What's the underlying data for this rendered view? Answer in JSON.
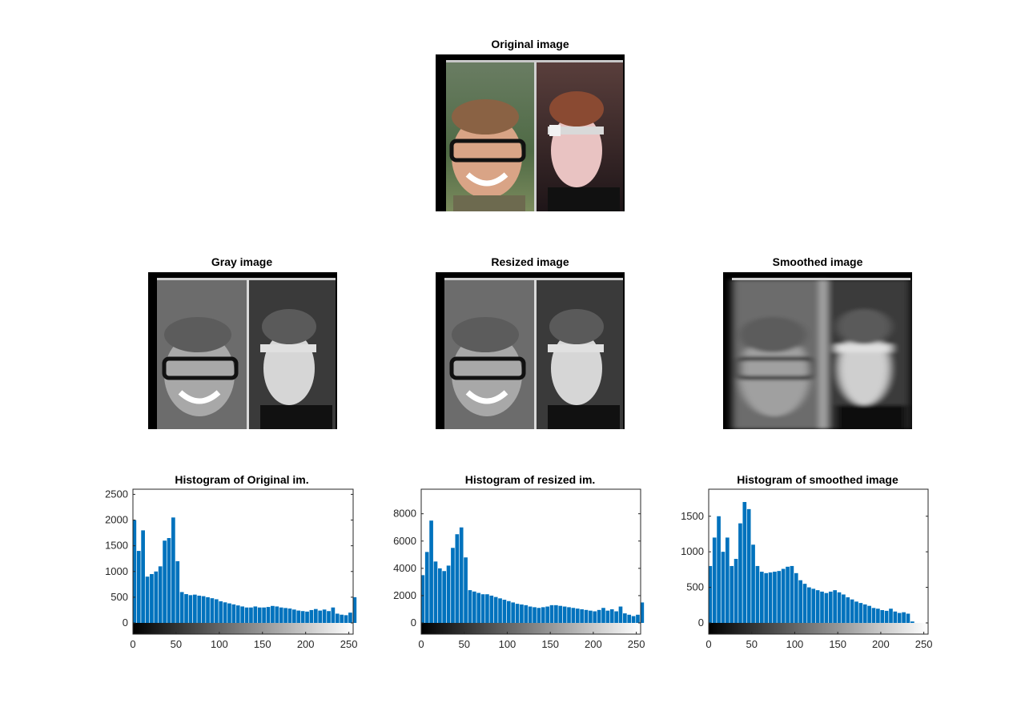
{
  "figure": {
    "panels": {
      "original": {
        "title": "Original image"
      },
      "gray": {
        "title": "Gray image"
      },
      "resized": {
        "title": "Resized image"
      },
      "smoothed": {
        "title": "Smoothed image"
      }
    },
    "colors": {
      "bar": "#0072BD",
      "axis": "#262626",
      "frame_dark": "#000000"
    }
  },
  "chart_data": [
    {
      "type": "bar",
      "title": "Histogram of Original im.",
      "xlabel": "",
      "ylabel": "",
      "xlim": [
        0,
        255
      ],
      "ylim": [
        0,
        2600
      ],
      "xticks": [
        0,
        50,
        100,
        150,
        200,
        250
      ],
      "yticks": [
        0,
        500,
        1000,
        1500,
        2000,
        2500
      ],
      "colorbar": "grayscale 0-255 below x-axis",
      "bins_x": [
        0,
        5,
        10,
        15,
        20,
        25,
        30,
        35,
        40,
        45,
        50,
        55,
        60,
        65,
        70,
        75,
        80,
        85,
        90,
        95,
        100,
        105,
        110,
        115,
        120,
        125,
        130,
        135,
        140,
        145,
        150,
        155,
        160,
        165,
        170,
        175,
        180,
        185,
        190,
        195,
        200,
        205,
        210,
        215,
        220,
        225,
        230,
        235,
        240,
        245,
        250,
        255
      ],
      "values": [
        2000,
        1400,
        1800,
        900,
        950,
        1000,
        1100,
        1600,
        1650,
        2050,
        1200,
        600,
        560,
        540,
        550,
        530,
        520,
        500,
        480,
        460,
        420,
        400,
        380,
        360,
        340,
        320,
        300,
        300,
        320,
        300,
        300,
        310,
        330,
        320,
        300,
        290,
        280,
        260,
        240,
        230,
        220,
        250,
        270,
        240,
        260,
        230,
        300,
        180,
        160,
        150,
        200,
        500
      ]
    },
    {
      "type": "bar",
      "title": "Histogram of resized im.",
      "xlabel": "",
      "ylabel": "",
      "xlim": [
        0,
        255
      ],
      "ylim": [
        0,
        9800
      ],
      "xticks": [
        0,
        50,
        100,
        150,
        200,
        250
      ],
      "yticks": [
        0,
        2000,
        4000,
        6000,
        8000
      ],
      "colorbar": "grayscale 0-255 below x-axis",
      "bins_x": [
        0,
        5,
        10,
        15,
        20,
        25,
        30,
        35,
        40,
        45,
        50,
        55,
        60,
        65,
        70,
        75,
        80,
        85,
        90,
        95,
        100,
        105,
        110,
        115,
        120,
        125,
        130,
        135,
        140,
        145,
        150,
        155,
        160,
        165,
        170,
        175,
        180,
        185,
        190,
        195,
        200,
        205,
        210,
        215,
        220,
        225,
        230,
        235,
        240,
        245,
        250,
        255
      ],
      "values": [
        3500,
        5200,
        7500,
        4500,
        4000,
        3800,
        4200,
        5500,
        6500,
        7000,
        4800,
        2400,
        2300,
        2200,
        2100,
        2100,
        2000,
        1900,
        1800,
        1700,
        1600,
        1500,
        1400,
        1350,
        1300,
        1200,
        1150,
        1100,
        1150,
        1200,
        1300,
        1300,
        1250,
        1200,
        1150,
        1100,
        1050,
        1000,
        950,
        900,
        850,
        950,
        1100,
        900,
        1000,
        850,
        1200,
        700,
        600,
        500,
        600,
        1500
      ]
    },
    {
      "type": "bar",
      "title": "Histogram of smoothed image",
      "xlabel": "",
      "ylabel": "",
      "xlim": [
        0,
        255
      ],
      "ylim": [
        0,
        1880
      ],
      "xticks": [
        0,
        50,
        100,
        150,
        200,
        250
      ],
      "yticks": [
        0,
        500,
        1000,
        1500
      ],
      "colorbar": "grayscale 0-255 below x-axis",
      "bins_x": [
        0,
        5,
        10,
        15,
        20,
        25,
        30,
        35,
        40,
        45,
        50,
        55,
        60,
        65,
        70,
        75,
        80,
        85,
        90,
        95,
        100,
        105,
        110,
        115,
        120,
        125,
        130,
        135,
        140,
        145,
        150,
        155,
        160,
        165,
        170,
        175,
        180,
        185,
        190,
        195,
        200,
        205,
        210,
        215,
        220,
        225,
        230,
        235,
        240,
        245,
        250,
        255
      ],
      "values": [
        800,
        1200,
        1500,
        1000,
        1200,
        800,
        900,
        1400,
        1700,
        1600,
        1100,
        800,
        720,
        700,
        710,
        720,
        730,
        760,
        790,
        800,
        700,
        600,
        550,
        500,
        480,
        460,
        440,
        420,
        440,
        460,
        430,
        400,
        360,
        330,
        300,
        280,
        260,
        240,
        210,
        200,
        180,
        170,
        200,
        160,
        140,
        150,
        130,
        20,
        0,
        0,
        0,
        0
      ]
    }
  ]
}
